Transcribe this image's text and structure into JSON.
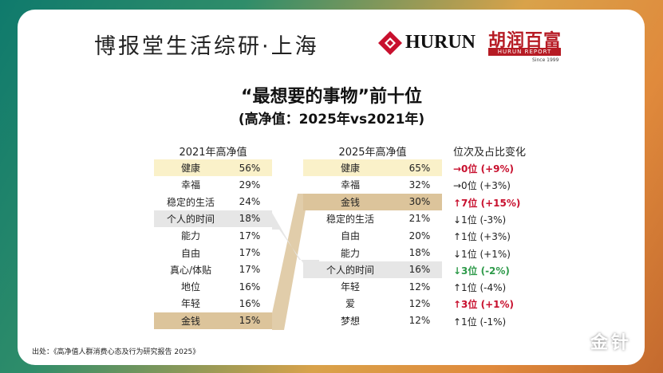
{
  "header": {
    "title": "博报堂生活综研·上海",
    "hurun": "HURUN",
    "hurun_cn": "胡润百富",
    "hurun_report": "HURUN REPORT",
    "since": "Since 1999"
  },
  "title": "“最想要的事物”前十位",
  "subtitle": "(高净值：2025年vs2021年)",
  "table2021": {
    "header": "2021年高净值",
    "rows": [
      {
        "name": "健康",
        "pct": "56%"
      },
      {
        "name": "幸福",
        "pct": "29%"
      },
      {
        "name": "稳定的生活",
        "pct": "24%"
      },
      {
        "name": "个人的时间",
        "pct": "18%"
      },
      {
        "name": "能力",
        "pct": "17%"
      },
      {
        "name": "自由",
        "pct": "17%"
      },
      {
        "name": "真心/体贴",
        "pct": "17%"
      },
      {
        "name": "地位",
        "pct": "16%"
      },
      {
        "name": "年轻",
        "pct": "16%"
      },
      {
        "name": "金钱",
        "pct": "15%"
      }
    ]
  },
  "table2025": {
    "header": "2025年高净值",
    "rows": [
      {
        "name": "健康",
        "pct": "65%"
      },
      {
        "name": "幸福",
        "pct": "32%"
      },
      {
        "name": "金钱",
        "pct": "30%"
      },
      {
        "name": "稳定的生活",
        "pct": "21%"
      },
      {
        "name": "自由",
        "pct": "20%"
      },
      {
        "name": "能力",
        "pct": "18%"
      },
      {
        "name": "个人的时间",
        "pct": "16%"
      },
      {
        "name": "年轻",
        "pct": "12%"
      },
      {
        "name": "爱",
        "pct": "12%"
      },
      {
        "name": "梦想",
        "pct": "12%"
      }
    ]
  },
  "changes": {
    "header": "位次及占比变化",
    "rows": [
      {
        "text": "→0位 (+9%)",
        "style": "red"
      },
      {
        "text": "→0位 (+3%)",
        "style": "normal"
      },
      {
        "text": "↑7位 (+15%)",
        "style": "red"
      },
      {
        "text": "↓1位 (-3%)",
        "style": "normal"
      },
      {
        "text": "↑1位 (+3%)",
        "style": "normal"
      },
      {
        "text": "↓1位 (+1%)",
        "style": "normal"
      },
      {
        "text": "↓3位 (-2%)",
        "style": "green"
      },
      {
        "text": "↑1位 (-4%)",
        "style": "normal"
      },
      {
        "text": "↑3位 (+1%)",
        "style": "red"
      },
      {
        "text": "↑1位 (-1%)",
        "style": "normal"
      }
    ]
  },
  "source": "出处：《高净值人群消费心态及行为研究报告 2025》",
  "watermark": "金针",
  "colors": {
    "highlight_yellow": "#faf1c9",
    "highlight_tan": "#dcc49b",
    "highlight_gray": "#e6e6e6",
    "up_red": "#c8102e",
    "down_green": "#2e9a4a",
    "brand_red": "#b61b24"
  }
}
